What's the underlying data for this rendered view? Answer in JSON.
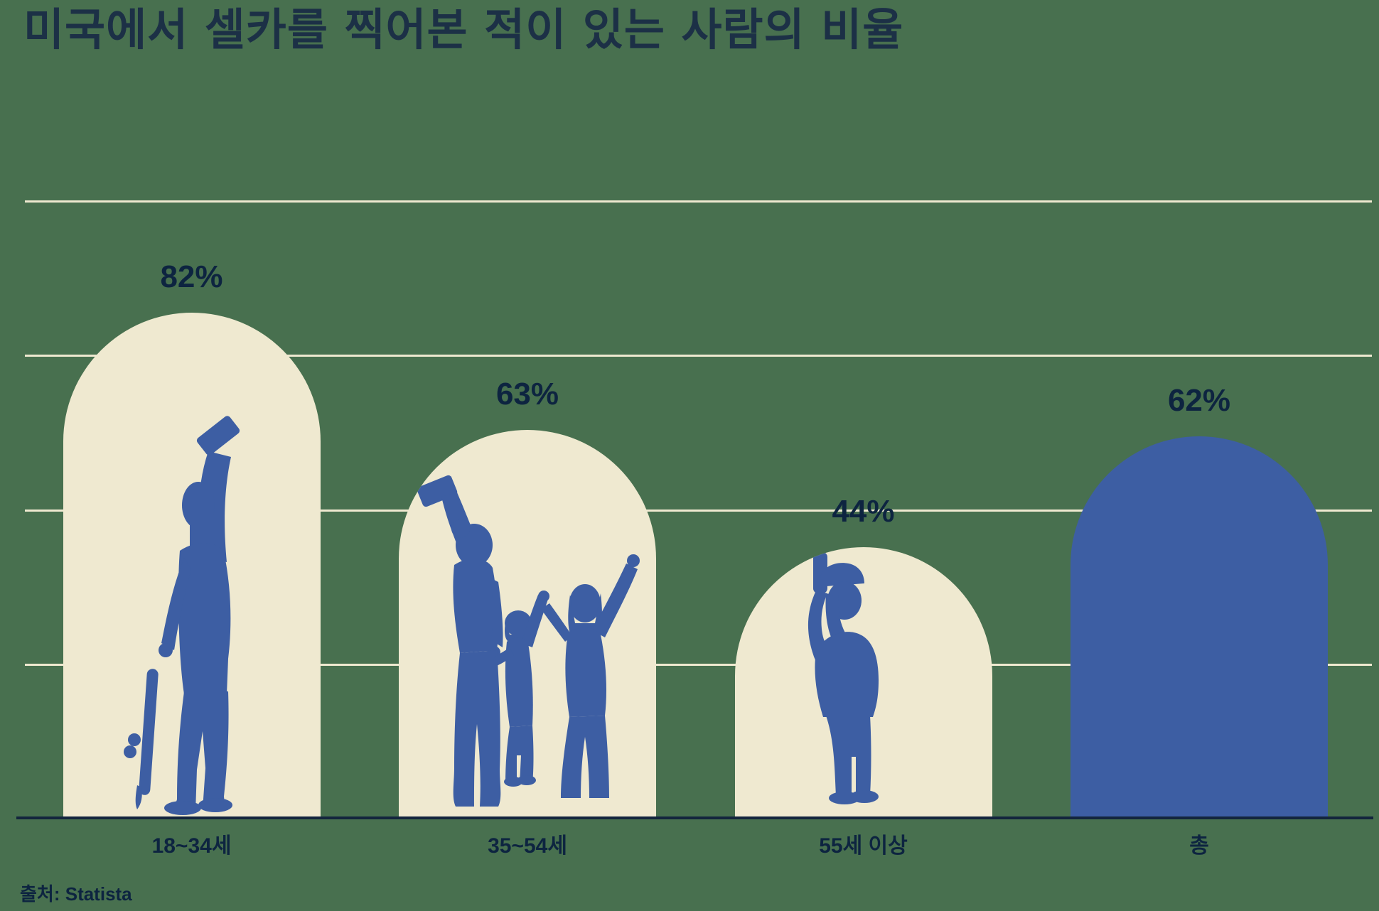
{
  "title": "미국에서 셀카를 찍어본 적이 있는 사람의 비율",
  "source": "출처: Statista",
  "colors": {
    "background": "#48704F",
    "bar_cream": "#EFE9D0",
    "bar_blue": "#3D5EA3",
    "text_navy": "#0D2440",
    "title_navy": "#1C3046",
    "gridline": "#EFE9D0",
    "axis": "#13253D"
  },
  "chart_data": {
    "type": "bar",
    "title": "미국에서 셀카를 찍어본 적이 있는 사람의 비율",
    "source": "출처: Statista",
    "categories": [
      "18~34세",
      "35~54세",
      "55세 이상",
      "총"
    ],
    "values": [
      82,
      63,
      44,
      62
    ],
    "value_labels": [
      "82%",
      "63%",
      "44%",
      "62%"
    ],
    "unit": "%",
    "ylim": [
      0,
      100
    ],
    "gridline_values": [
      25,
      50,
      75,
      100
    ],
    "grid": true,
    "legend": false,
    "bar_shape": "rounded-arch",
    "bars": [
      {
        "category": "18~34세",
        "value": 82,
        "label": "82%",
        "fill": "cream",
        "silhouette": "young-adult-selfie-skateboard"
      },
      {
        "category": "35~54세",
        "value": 63,
        "label": "63%",
        "fill": "cream",
        "silhouette": "family-selfie"
      },
      {
        "category": "55세 이상",
        "value": 44,
        "label": "44%",
        "fill": "cream",
        "silhouette": "senior-selfie"
      },
      {
        "category": "총",
        "value": 62,
        "label": "62%",
        "fill": "blue",
        "silhouette": null
      }
    ],
    "silhouette_icons": {
      "young-adult-selfie-skateboard": "person holding phone up for selfie, skateboard in other hand",
      "family-selfie": "adult taking selfie with two children waving",
      "senior-selfie": "older man in flat cap taking selfie with both hands"
    }
  }
}
